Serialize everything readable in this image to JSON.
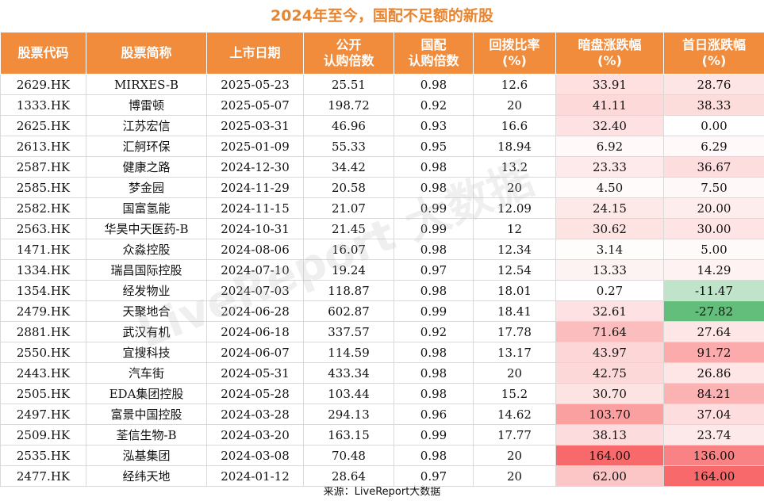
{
  "title": "2024年至今，国配不足额的新股",
  "headers": [
    [
      "股票代码"
    ],
    [
      "股票简称"
    ],
    [
      "上市日期"
    ],
    [
      "公开",
      "认购倍数"
    ],
    [
      "国配",
      "认购倍数"
    ],
    [
      "回拨比率",
      "(%)"
    ],
    [
      "暗盘涨跌幅",
      "(%)"
    ],
    [
      "首日涨跌幅",
      "(%)"
    ]
  ],
  "rows": [
    [
      "2629.HK",
      "MIRXES-B",
      "2025-05-23",
      "25.51",
      "0.98",
      "12.6",
      "33.91",
      "28.76"
    ],
    [
      "1333.HK",
      "博雷顿",
      "2025-05-07",
      "198.72",
      "0.92",
      "20",
      "41.11",
      "38.33"
    ],
    [
      "2625.HK",
      "江苏宏信",
      "2025-03-31",
      "46.96",
      "0.93",
      "16.6",
      "32.40",
      "0.00"
    ],
    [
      "2613.HK",
      "汇舸环保",
      "2025-01-09",
      "55.33",
      "0.95",
      "18.94",
      "6.92",
      "6.29"
    ],
    [
      "2587.HK",
      "健康之路",
      "2024-12-30",
      "34.42",
      "0.98",
      "13.2",
      "23.33",
      "36.67"
    ],
    [
      "2585.HK",
      "梦金园",
      "2024-11-29",
      "20.58",
      "0.98",
      "20",
      "4.50",
      "7.50"
    ],
    [
      "2582.HK",
      "国富氢能",
      "2024-11-15",
      "21.07",
      "0.99",
      "12.09",
      "24.15",
      "20.00"
    ],
    [
      "2563.HK",
      "华昊中天医药-B",
      "2024-10-31",
      "21.45",
      "0.99",
      "12",
      "30.62",
      "30.00"
    ],
    [
      "1471.HK",
      "众淼控股",
      "2024-08-06",
      "16.07",
      "0.98",
      "12.34",
      "3.14",
      "5.00"
    ],
    [
      "1334.HK",
      "瑞昌国际控股",
      "2024-07-10",
      "19.24",
      "0.97",
      "12.54",
      "13.33",
      "14.29"
    ],
    [
      "1354.HK",
      "经发物业",
      "2024-07-03",
      "118.87",
      "0.98",
      "18.01",
      "0.27",
      "-11.47"
    ],
    [
      "2479.HK",
      "天聚地合",
      "2024-06-28",
      "602.87",
      "0.99",
      "18.41",
      "32.61",
      "-27.82"
    ],
    [
      "2881.HK",
      "武汉有机",
      "2024-06-18",
      "337.57",
      "0.92",
      "17.78",
      "71.64",
      "27.64"
    ],
    [
      "2550.HK",
      "宜搜科技",
      "2024-06-07",
      "114.59",
      "0.98",
      "13.17",
      "43.97",
      "91.72"
    ],
    [
      "2443.HK",
      "汽车街",
      "2024-05-31",
      "433.34",
      "0.98",
      "20",
      "42.75",
      "26.86"
    ],
    [
      "2505.HK",
      "EDA集团控股",
      "2024-05-28",
      "103.44",
      "0.98",
      "15.2",
      "30.70",
      "84.21"
    ],
    [
      "2497.HK",
      "富景中国控股",
      "2024-03-28",
      "294.13",
      "0.96",
      "14.62",
      "103.70",
      "37.04"
    ],
    [
      "2509.HK",
      "荃信生物-B",
      "2024-03-20",
      "163.15",
      "0.99",
      "17.77",
      "38.13",
      "23.74"
    ],
    [
      "2535.HK",
      "泓基集团",
      "2024-03-08",
      "70.48",
      "0.98",
      "20",
      "164.00",
      "136.00"
    ],
    [
      "2477.HK",
      "经纬天地",
      "2024-01-12",
      "28.64",
      "0.97",
      "20",
      "62.00",
      "164.00"
    ]
  ],
  "footer": "来源：LiveReport大数据",
  "watermark": "LiveReport 大数据",
  "colors": {
    "header_bg": "#f08c3c",
    "title": "#e8852e",
    "positive_max": "#f8696b",
    "negative_max": "#63be7b"
  }
}
